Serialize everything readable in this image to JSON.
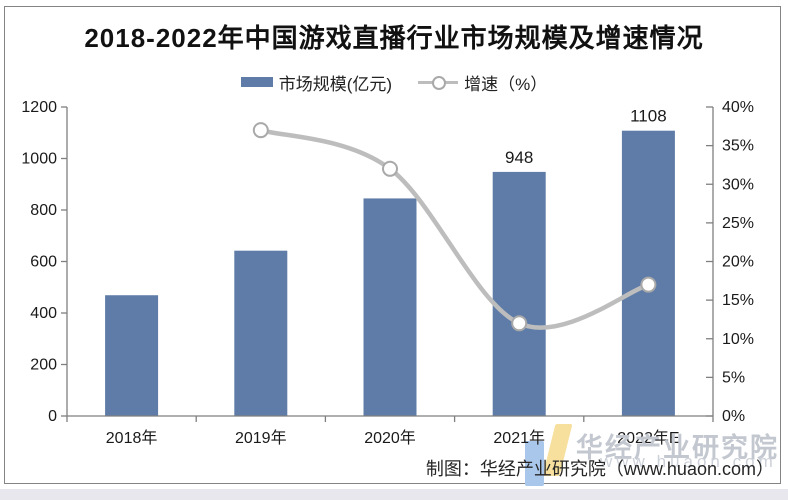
{
  "title": "2018-2022年中国游戏直播行业市场规模及增速情况",
  "legend": {
    "bars_label": "市场规模(亿元)",
    "line_label": "增速（%）"
  },
  "caption": "制图：华经产业研究院（www.huaon.com）",
  "watermark": {
    "text": "华经产业研究院",
    "url": "www.huaon.com"
  },
  "colors": {
    "bar": "#5E7CA7",
    "line": "#bdbdbd",
    "marker_fill": "#ffffff",
    "marker_stroke": "#a9a9a9",
    "axis": "#7f7f7f",
    "tick_text": "#1a1a1a",
    "data_label": "#1a1a1a",
    "watermark": "#c3c7cf",
    "panel_border": "#848484",
    "bottom_strip": "#e7e7ed",
    "logo_blue": "#a9c7ea",
    "logo_yellow": "#f7e09e"
  },
  "chart_data": {
    "type": "bar+line",
    "title": "2018-2022年中国游戏直播行业市场规模及增速情况",
    "categories": [
      "2018年",
      "2019年",
      "2020年",
      "2021年",
      "2022年E"
    ],
    "series": [
      {
        "name": "市场规模(亿元)",
        "type": "bar",
        "axis": "left",
        "values": [
          469,
          642,
          845,
          948,
          1108
        ],
        "data_labels": [
          null,
          null,
          null,
          "948",
          "1108"
        ]
      },
      {
        "name": "增速（%）",
        "type": "line",
        "axis": "right",
        "values": [
          null,
          37,
          32,
          12,
          17
        ]
      }
    ],
    "left_axis": {
      "min": 0,
      "max": 1200,
      "tick_values": [
        0,
        200,
        400,
        600,
        800,
        1000,
        1200
      ],
      "tick_labels": [
        "0",
        "200",
        "400",
        "600",
        "800",
        "1000",
        "1200"
      ]
    },
    "right_axis": {
      "min": 0,
      "max": 40,
      "tick_values": [
        0,
        5,
        10,
        15,
        20,
        25,
        30,
        35,
        40
      ],
      "tick_labels": [
        "0%",
        "5%",
        "10%",
        "15%",
        "20%",
        "25%",
        "30%",
        "35%",
        "40%"
      ]
    },
    "grid": false,
    "legend_position": "top"
  }
}
